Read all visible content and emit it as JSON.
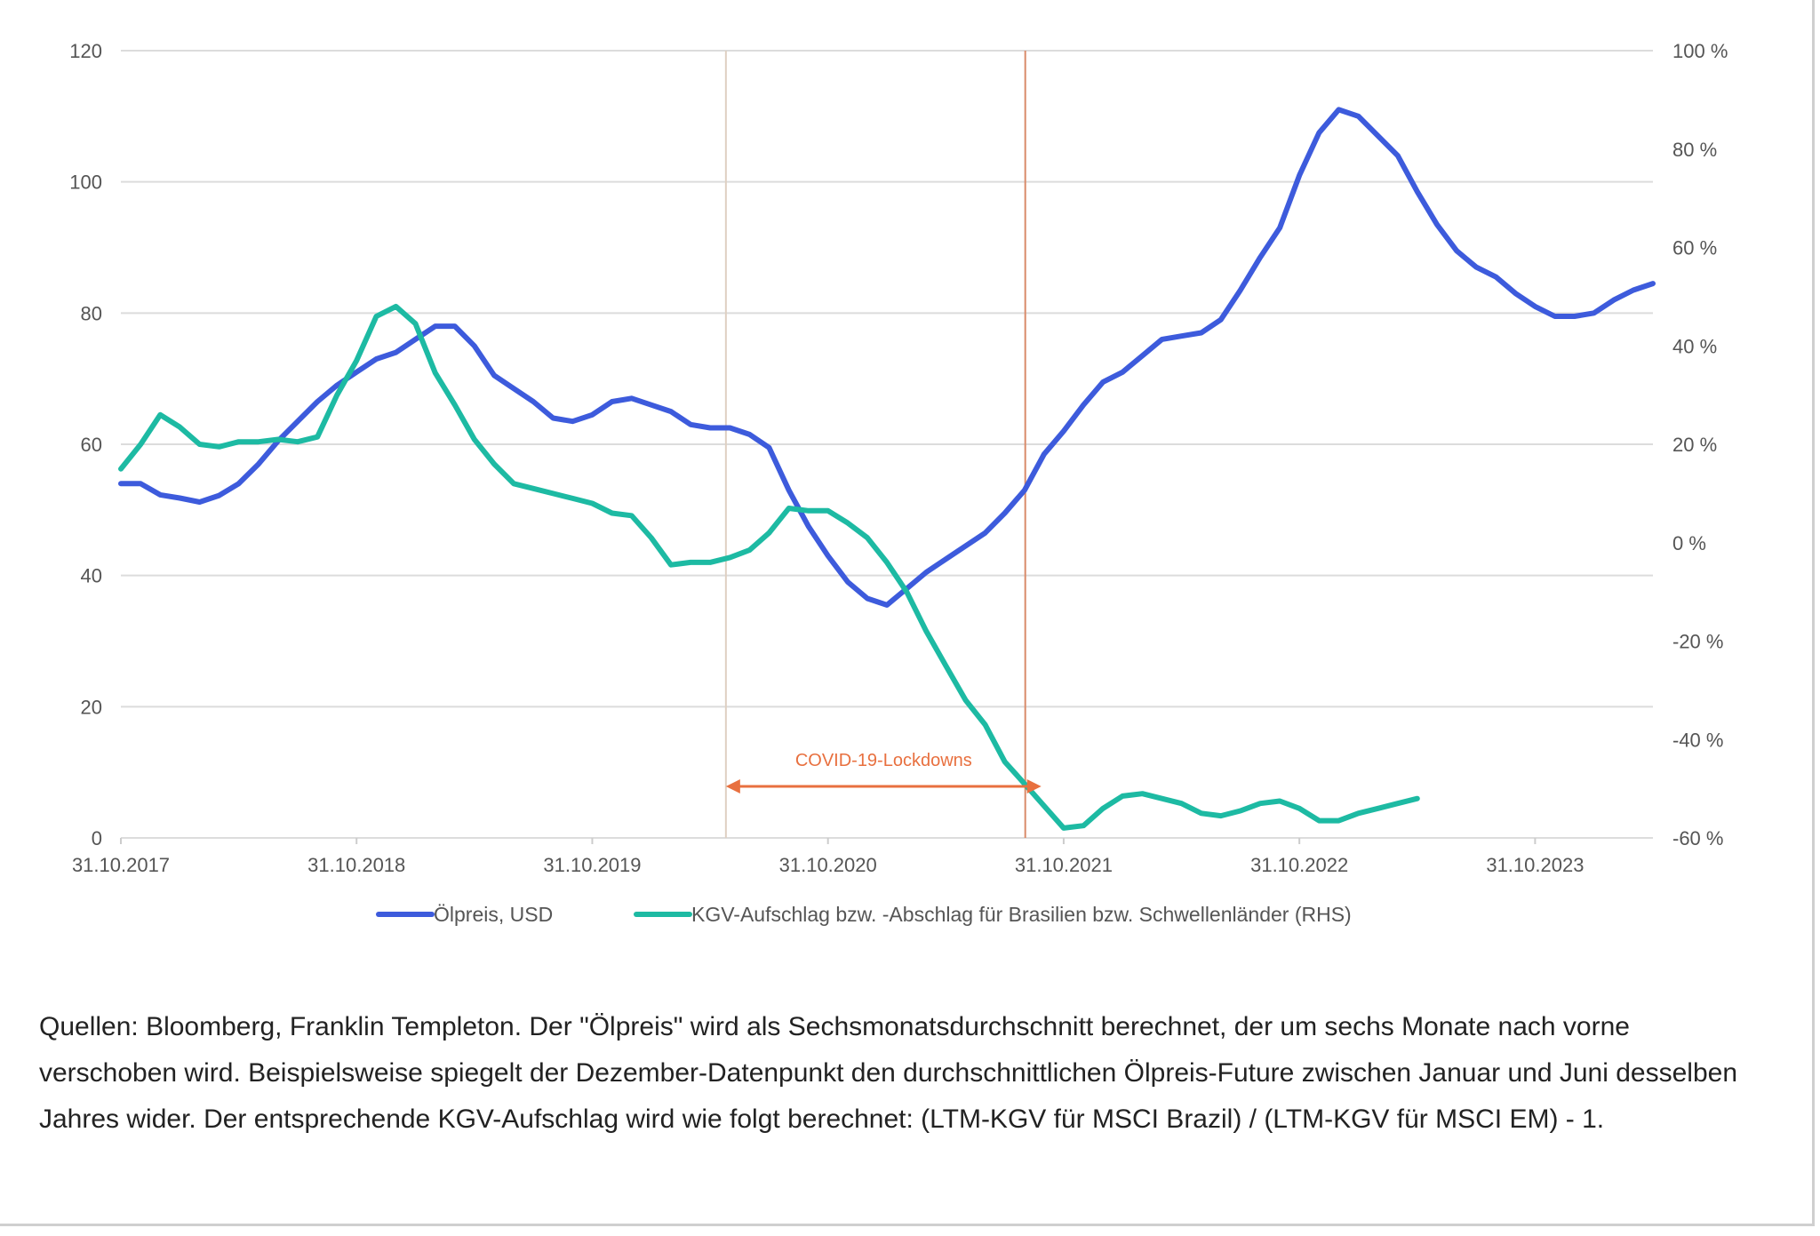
{
  "chart_data": {
    "type": "line",
    "x_tick_labels": [
      "31.10.2017",
      "31.10.2018",
      "31.10.2019",
      "31.10.2020",
      "31.10.2021",
      "31.10.2022",
      "31.10.2023"
    ],
    "y_left": {
      "ticks": [
        "0",
        "20",
        "40",
        "60",
        "80",
        "100",
        "120"
      ],
      "range": [
        0,
        120
      ]
    },
    "y_right": {
      "ticks": [
        "-60 %",
        "-40 %",
        "-20 %",
        "0 %",
        "20 %",
        "40 %",
        "60 %",
        "80 %",
        "100 %"
      ],
      "range": [
        -60,
        100
      ]
    },
    "x_range_years": [
      2017.833,
      2024.333
    ],
    "grid": "horizontal",
    "legend_position": "bottom",
    "series": [
      {
        "name": "Ölpreis, USD",
        "axis": "left",
        "color": "#3d5bdc",
        "points": [
          [
            2017.833,
            54
          ],
          [
            2017.917,
            54
          ],
          [
            2018.0,
            52.3
          ],
          [
            2018.083,
            51.8
          ],
          [
            2018.167,
            51.2
          ],
          [
            2018.25,
            52.2
          ],
          [
            2018.333,
            54
          ],
          [
            2018.417,
            57
          ],
          [
            2018.5,
            60.5
          ],
          [
            2018.583,
            63.5
          ],
          [
            2018.667,
            66.5
          ],
          [
            2018.75,
            69
          ],
          [
            2018.833,
            71
          ],
          [
            2018.917,
            73
          ],
          [
            2019.0,
            74
          ],
          [
            2019.083,
            76
          ],
          [
            2019.167,
            78
          ],
          [
            2019.25,
            78
          ],
          [
            2019.333,
            75
          ],
          [
            2019.417,
            70.5
          ],
          [
            2019.5,
            68.5
          ],
          [
            2019.583,
            66.5
          ],
          [
            2019.667,
            64
          ],
          [
            2019.75,
            63.5
          ],
          [
            2019.833,
            64.5
          ],
          [
            2019.917,
            66.5
          ],
          [
            2020.0,
            67
          ],
          [
            2020.083,
            66
          ],
          [
            2020.167,
            65
          ],
          [
            2020.25,
            63
          ],
          [
            2020.333,
            62.5
          ],
          [
            2020.417,
            62.5
          ],
          [
            2020.5,
            61.5
          ],
          [
            2020.583,
            59.5
          ],
          [
            2020.667,
            53
          ],
          [
            2020.75,
            47.5
          ],
          [
            2020.833,
            43
          ],
          [
            2020.917,
            39
          ],
          [
            2021.0,
            36.5
          ],
          [
            2021.083,
            35.5
          ],
          [
            2021.167,
            38
          ],
          [
            2021.25,
            40.5
          ],
          [
            2021.333,
            42.5
          ],
          [
            2021.417,
            44.5
          ],
          [
            2021.5,
            46.5
          ],
          [
            2021.583,
            49.5
          ],
          [
            2021.667,
            53
          ],
          [
            2021.75,
            58.5
          ],
          [
            2021.833,
            62
          ],
          [
            2021.917,
            66
          ],
          [
            2022.0,
            69.5
          ],
          [
            2022.083,
            71
          ],
          [
            2022.167,
            73.5
          ],
          [
            2022.25,
            76
          ],
          [
            2022.333,
            76.5
          ],
          [
            2022.417,
            77
          ],
          [
            2022.5,
            79
          ],
          [
            2022.583,
            83.5
          ],
          [
            2022.667,
            88.5
          ],
          [
            2022.75,
            93
          ],
          [
            2022.833,
            101
          ],
          [
            2022.917,
            107.5
          ],
          [
            2023.0,
            111
          ],
          [
            2023.083,
            110
          ],
          [
            2023.167,
            107
          ],
          [
            2023.25,
            104
          ],
          [
            2023.333,
            98.5
          ],
          [
            2023.417,
            93.5
          ],
          [
            2023.5,
            89.5
          ],
          [
            2023.583,
            87
          ],
          [
            2023.667,
            85.5
          ],
          [
            2023.75,
            83
          ],
          [
            2023.833,
            81
          ],
          [
            2023.917,
            79.5
          ],
          [
            2024.0,
            79.5
          ],
          [
            2024.083,
            80
          ],
          [
            2024.167,
            82
          ],
          [
            2024.25,
            83.5
          ],
          [
            2024.333,
            84.5
          ]
        ]
      },
      {
        "name": "KGV-Aufschlag bzw. -Abschlag für Brasilien bzw. Schwellenländer (RHS)",
        "axis": "right",
        "color": "#1dbaa3",
        "points": [
          [
            2017.833,
            15
          ],
          [
            2017.917,
            20
          ],
          [
            2018.0,
            26
          ],
          [
            2018.083,
            23.5
          ],
          [
            2018.167,
            20
          ],
          [
            2018.25,
            19.5
          ],
          [
            2018.333,
            20.5
          ],
          [
            2018.417,
            20.5
          ],
          [
            2018.5,
            21
          ],
          [
            2018.583,
            20.5
          ],
          [
            2018.667,
            21.5
          ],
          [
            2018.75,
            30
          ],
          [
            2018.833,
            37
          ],
          [
            2018.917,
            46
          ],
          [
            2019.0,
            48
          ],
          [
            2019.083,
            44.5
          ],
          [
            2019.167,
            34.5
          ],
          [
            2019.25,
            28
          ],
          [
            2019.333,
            21
          ],
          [
            2019.417,
            16
          ],
          [
            2019.5,
            12
          ],
          [
            2019.583,
            11
          ],
          [
            2019.667,
            10
          ],
          [
            2019.75,
            9
          ],
          [
            2019.833,
            8
          ],
          [
            2019.917,
            6
          ],
          [
            2020.0,
            5.5
          ],
          [
            2020.083,
            1
          ],
          [
            2020.167,
            -4.5
          ],
          [
            2020.25,
            -4
          ],
          [
            2020.333,
            -4
          ],
          [
            2020.417,
            -3
          ],
          [
            2020.5,
            -1.5
          ],
          [
            2020.583,
            2
          ],
          [
            2020.667,
            7
          ],
          [
            2020.75,
            6.5
          ],
          [
            2020.833,
            6.5
          ],
          [
            2020.917,
            4
          ],
          [
            2021.0,
            1
          ],
          [
            2021.083,
            -4
          ],
          [
            2021.167,
            -10
          ],
          [
            2021.25,
            -18
          ],
          [
            2021.333,
            -25
          ],
          [
            2021.417,
            -32
          ],
          [
            2021.5,
            -37
          ],
          [
            2021.583,
            -44.5
          ],
          [
            2021.667,
            -49
          ],
          [
            2021.75,
            -53.5
          ],
          [
            2021.833,
            -58
          ],
          [
            2021.917,
            -57.5
          ],
          [
            2022.0,
            -54
          ],
          [
            2022.083,
            -51.5
          ],
          [
            2022.167,
            -51
          ],
          [
            2022.25,
            -52
          ],
          [
            2022.333,
            -53
          ],
          [
            2022.417,
            -55
          ],
          [
            2022.5,
            -55.5
          ],
          [
            2022.583,
            -54.5
          ],
          [
            2022.667,
            -53
          ],
          [
            2022.75,
            -52.5
          ],
          [
            2022.833,
            -54
          ],
          [
            2022.917,
            -56.5
          ],
          [
            2023.0,
            -56.5
          ],
          [
            2023.083,
            -55
          ],
          [
            2023.167,
            -54
          ],
          [
            2023.25,
            -53
          ],
          [
            2023.333,
            -52
          ]
        ]
      }
    ],
    "annotations": {
      "covid_label": "COVID-19-Lockdowns",
      "lockdown_start_x": 2020.4,
      "lockdown_end_x": 2021.67,
      "vline_start_color": "#dfd0c2",
      "vline_end_color": "#d98b6a",
      "arrow_color": "#e8703f"
    }
  },
  "caption": "Quellen: Bloomberg, Franklin Templeton. Der \"Ölpreis\" wird als Sechsmonatsdurchschnitt berechnet, der um sechs Monate nach vorne verschoben wird. Beispielsweise spiegelt der Dezember-Datenpunkt den durchschnittlichen Ölpreis-Future zwischen Januar und Juni desselben Jahres wider. Der entsprechende KGV-Aufschlag wird wie folgt berechnet: (LTM-KGV für MSCI Brazil) / (LTM-KGV für MSCI EM) - 1."
}
